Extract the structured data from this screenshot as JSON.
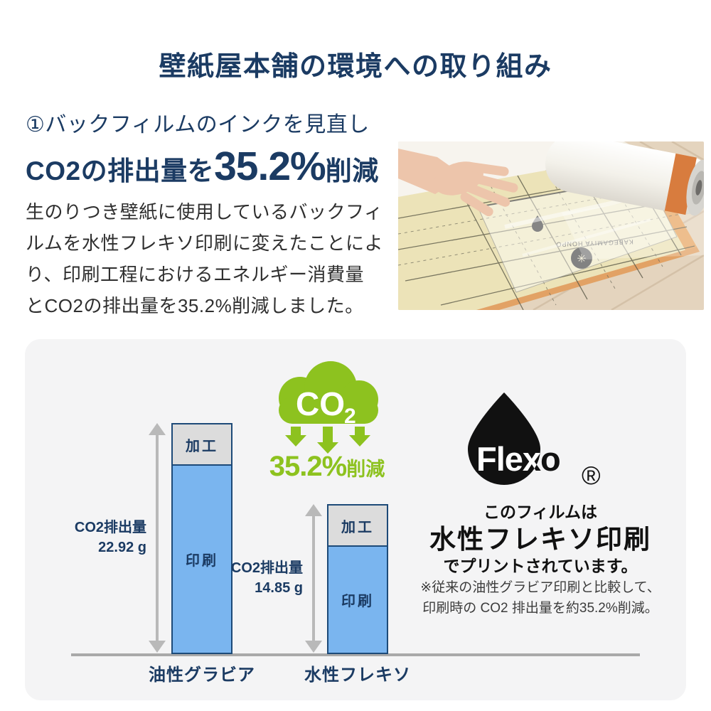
{
  "colors": {
    "navy": "#1b3b63",
    "body_text": "#2f2f2f",
    "green": "#8dc21f",
    "bar_blue": "#7ab5ef",
    "bar_gray": "#dcdcdc",
    "bar_border": "#1d4a78",
    "arrow_gray": "#b9b9b9",
    "axis_gray": "#a9a9a9",
    "panel_bg": "#f4f4f5",
    "ink_black": "#111111"
  },
  "header": {
    "title": "壁紙屋本舗の環境への取り組み"
  },
  "intro": {
    "heading": "①バックフィルムのインクを見直し",
    "lead_prefix": "CO2の排出量を",
    "lead_value": "35.2%",
    "lead_suffix": "削減",
    "body": "生のりつき壁紙に使用しているバックフィ\nルムを水性フレキソ印刷に変えたことによ\nり、印刷工程におけるエネルギー消費量\nとCO2の排出量を35.2%削減しました。"
  },
  "photo": {
    "stamp_text": "KABEGAMIYA HONPO"
  },
  "badge": {
    "cloud_main": "CO",
    "cloud_sub": "2",
    "value": "35.2%",
    "suffix": "削減"
  },
  "flexo": {
    "logo_text": "Flexo",
    "registered_mark": "®",
    "caption_line1": "このフィルムは",
    "caption_line2": "水性フレキソ印刷",
    "caption_line3": "でプリントされています。",
    "note": "※従来の油性グラビア印刷と比較して、\n印刷時の CO2 排出量を約35.2%削減。"
  },
  "chart_data": {
    "type": "bar",
    "stacked": true,
    "categories": [
      "油性グラビア",
      "水性フレキソ"
    ],
    "series": [
      {
        "name": "印刷",
        "values": [
          18.7,
          10.6
        ],
        "color": "#7ab5ef"
      },
      {
        "name": "加工",
        "values": [
          4.22,
          4.25
        ],
        "color": "#dcdcdc"
      }
    ],
    "totals": [
      {
        "label": "CO2排出量",
        "value": "22.92 g"
      },
      {
        "label": "CO2排出量",
        "value": "14.85 g"
      }
    ],
    "unit": "g",
    "ylim": [
      0,
      23
    ],
    "legend": false
  }
}
